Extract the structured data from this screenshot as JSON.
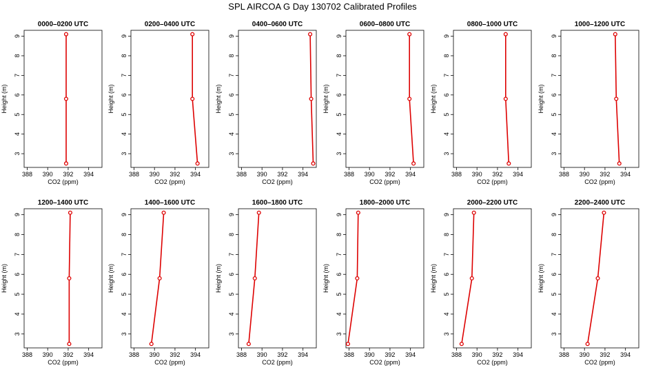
{
  "title": "SPL AIRCOA G  Day 130702  Calibrated Profiles",
  "colors": {
    "profile": "#dd0000",
    "axis": "#000000"
  },
  "chart_data": [
    {
      "type": "line",
      "title": "0000–0200 UTC",
      "xlabel": "CO2 (ppm)",
      "ylabel": "Height (m)",
      "xlim": [
        387.7,
        395.3
      ],
      "ylim": [
        2.3,
        9.3
      ],
      "xticks": [
        388,
        390,
        392,
        394
      ],
      "yticks": [
        3,
        4,
        5,
        6,
        7,
        8,
        9
      ],
      "x": [
        391.8,
        391.8,
        391.8
      ],
      "y": [
        2.5,
        5.8,
        9.1
      ]
    },
    {
      "type": "line",
      "title": "0200–0400 UTC",
      "xlabel": "CO2 (ppm)",
      "ylabel": "Height (m)",
      "xlim": [
        387.7,
        395.3
      ],
      "ylim": [
        2.3,
        9.3
      ],
      "xticks": [
        388,
        390,
        392,
        394
      ],
      "yticks": [
        3,
        4,
        5,
        6,
        7,
        8,
        9
      ],
      "x": [
        394.2,
        393.7,
        393.7
      ],
      "y": [
        2.5,
        5.8,
        9.1
      ]
    },
    {
      "type": "line",
      "title": "0400–0600 UTC",
      "xlabel": "CO2 (ppm)",
      "ylabel": "Height (m)",
      "xlim": [
        387.7,
        395.3
      ],
      "ylim": [
        2.3,
        9.3
      ],
      "xticks": [
        388,
        390,
        392,
        394
      ],
      "yticks": [
        3,
        4,
        5,
        6,
        7,
        8,
        9
      ],
      "x": [
        395.0,
        394.8,
        394.7
      ],
      "y": [
        2.5,
        5.8,
        9.1
      ]
    },
    {
      "type": "line",
      "title": "0600–0800 UTC",
      "xlabel": "CO2 (ppm)",
      "ylabel": "Height (m)",
      "xlim": [
        387.7,
        395.3
      ],
      "ylim": [
        2.3,
        9.3
      ],
      "xticks": [
        388,
        390,
        392,
        394
      ],
      "yticks": [
        3,
        4,
        5,
        6,
        7,
        8,
        9
      ],
      "x": [
        394.3,
        393.9,
        393.9
      ],
      "y": [
        2.5,
        5.8,
        9.1
      ]
    },
    {
      "type": "line",
      "title": "0800–1000 UTC",
      "xlabel": "CO2 (ppm)",
      "ylabel": "Height (m)",
      "xlim": [
        387.7,
        395.3
      ],
      "ylim": [
        2.3,
        9.3
      ],
      "xticks": [
        388,
        390,
        392,
        394
      ],
      "yticks": [
        3,
        4,
        5,
        6,
        7,
        8,
        9
      ],
      "x": [
        393.1,
        392.8,
        392.8
      ],
      "y": [
        2.5,
        5.8,
        9.1
      ]
    },
    {
      "type": "line",
      "title": "1000–1200 UTC",
      "xlabel": "CO2 (ppm)",
      "ylabel": "Height (m)",
      "xlim": [
        387.7,
        395.3
      ],
      "ylim": [
        2.3,
        9.3
      ],
      "xticks": [
        388,
        390,
        392,
        394
      ],
      "yticks": [
        3,
        4,
        5,
        6,
        7,
        8,
        9
      ],
      "x": [
        393.4,
        393.1,
        393.0
      ],
      "y": [
        2.5,
        5.8,
        9.1
      ]
    },
    {
      "type": "line",
      "title": "1200–1400 UTC",
      "xlabel": "CO2 (ppm)",
      "ylabel": "Height (m)",
      "xlim": [
        387.7,
        395.3
      ],
      "ylim": [
        2.3,
        9.3
      ],
      "xticks": [
        388,
        390,
        392,
        394
      ],
      "yticks": [
        3,
        4,
        5,
        6,
        7,
        8,
        9
      ],
      "x": [
        392.1,
        392.1,
        392.2
      ],
      "y": [
        2.5,
        5.8,
        9.1
      ]
    },
    {
      "type": "line",
      "title": "1400–1600 UTC",
      "xlabel": "CO2 (ppm)",
      "ylabel": "Height (m)",
      "xlim": [
        387.7,
        395.3
      ],
      "ylim": [
        2.3,
        9.3
      ],
      "xticks": [
        388,
        390,
        392,
        394
      ],
      "yticks": [
        3,
        4,
        5,
        6,
        7,
        8,
        9
      ],
      "x": [
        389.7,
        390.5,
        390.9
      ],
      "y": [
        2.5,
        5.8,
        9.1
      ]
    },
    {
      "type": "line",
      "title": "1600–1800 UTC",
      "xlabel": "CO2 (ppm)",
      "ylabel": "Height (m)",
      "xlim": [
        387.7,
        395.3
      ],
      "ylim": [
        2.3,
        9.3
      ],
      "xticks": [
        388,
        390,
        392,
        394
      ],
      "yticks": [
        3,
        4,
        5,
        6,
        7,
        8,
        9
      ],
      "x": [
        388.7,
        389.3,
        389.7
      ],
      "y": [
        2.5,
        5.8,
        9.1
      ]
    },
    {
      "type": "line",
      "title": "1800–2000 UTC",
      "xlabel": "CO2 (ppm)",
      "ylabel": "Height (m)",
      "xlim": [
        387.7,
        395.3
      ],
      "ylim": [
        2.3,
        9.3
      ],
      "xticks": [
        388,
        390,
        392,
        394
      ],
      "yticks": [
        3,
        4,
        5,
        6,
        7,
        8,
        9
      ],
      "x": [
        387.9,
        388.8,
        388.9
      ],
      "y": [
        2.5,
        5.8,
        9.1
      ]
    },
    {
      "type": "line",
      "title": "2000–2200 UTC",
      "xlabel": "CO2 (ppm)",
      "ylabel": "Height (m)",
      "xlim": [
        387.7,
        395.3
      ],
      "ylim": [
        2.3,
        9.3
      ],
      "xticks": [
        388,
        390,
        392,
        394
      ],
      "yticks": [
        3,
        4,
        5,
        6,
        7,
        8,
        9
      ],
      "x": [
        388.5,
        389.5,
        389.7
      ],
      "y": [
        2.5,
        5.8,
        9.1
      ]
    },
    {
      "type": "line",
      "title": "2200–2400 UTC",
      "xlabel": "CO2 (ppm)",
      "ylabel": "Height (m)",
      "xlim": [
        387.7,
        395.3
      ],
      "ylim": [
        2.3,
        9.3
      ],
      "xticks": [
        388,
        390,
        392,
        394
      ],
      "yticks": [
        3,
        4,
        5,
        6,
        7,
        8,
        9
      ],
      "x": [
        390.3,
        391.3,
        391.9
      ],
      "y": [
        2.5,
        5.8,
        9.1
      ]
    }
  ]
}
